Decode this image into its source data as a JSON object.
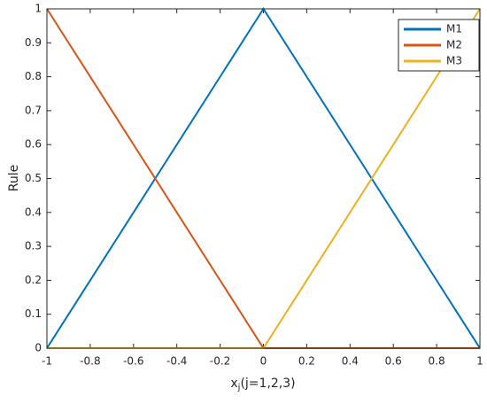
{
  "chart_data": {
    "type": "line",
    "xlabel": [
      "x",
      "j",
      "(j=1,2,3)"
    ],
    "ylabel": "Rule",
    "x": [
      -1,
      0,
      1
    ],
    "series": [
      {
        "name": "M1",
        "color": "#0072BD",
        "values": [
          0,
          1,
          0
        ]
      },
      {
        "name": "M2",
        "color": "#D95319",
        "values": [
          1,
          0,
          0
        ]
      },
      {
        "name": "M3",
        "color": "#EDB120",
        "values": [
          0,
          0,
          1
        ]
      }
    ],
    "xlim": [
      -1,
      1
    ],
    "ylim": [
      0,
      1
    ],
    "xticks": [
      -1,
      -0.8,
      -0.6,
      -0.4,
      -0.2,
      0,
      0.2,
      0.4,
      0.6,
      0.8,
      1
    ],
    "yticks": [
      0,
      0.1,
      0.2,
      0.3,
      0.4,
      0.5,
      0.6,
      0.7,
      0.8,
      0.9,
      1
    ],
    "legend": "top-right",
    "grid": false
  }
}
